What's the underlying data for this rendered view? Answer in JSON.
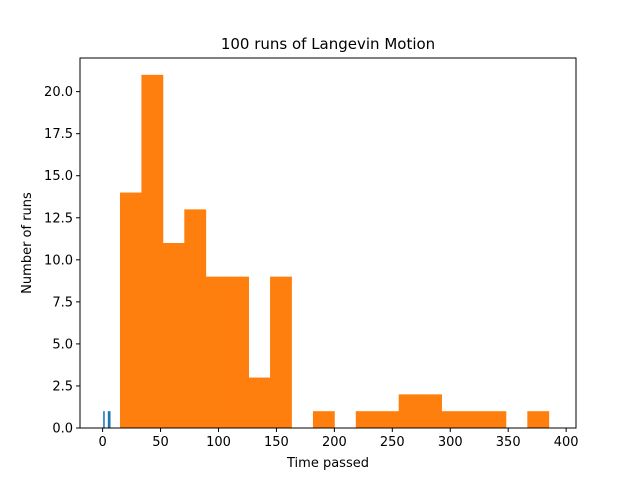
{
  "chart_data": {
    "type": "bar",
    "title": "100 runs of Langevin Motion",
    "xlabel": "Time passed",
    "ylabel": "Number of runs",
    "xlim": [
      -19.5,
      408.5
    ],
    "ylim": [
      0,
      22
    ],
    "xticks": [
      0,
      50,
      100,
      150,
      200,
      250,
      300,
      350,
      400
    ],
    "yticks": [
      0.0,
      2.5,
      5.0,
      7.5,
      10.0,
      12.5,
      15.0,
      17.5,
      20.0
    ],
    "xtick_labels": [
      "0",
      "50",
      "100",
      "150",
      "200",
      "250",
      "300",
      "350",
      "400"
    ],
    "ytick_labels": [
      "0.0",
      "2.5",
      "5.0",
      "7.5",
      "10.0",
      "12.5",
      "15.0",
      "17.5",
      "20.0"
    ],
    "grid": false,
    "legend": "none",
    "series": [
      {
        "color": "#1f77b4",
        "bars": [
          {
            "x0": 0.5,
            "x1": 1.5,
            "value": 1
          },
          {
            "x0": 4.5,
            "x1": 6.5,
            "value": 1
          }
        ]
      },
      {
        "color": "#ff7f0e",
        "bin_start": 15,
        "bin_width": 18.5,
        "values": [
          14,
          21,
          11,
          13,
          9,
          9,
          3,
          9,
          0,
          1,
          0,
          1,
          1,
          2,
          2,
          1,
          1,
          1,
          0,
          1
        ]
      }
    ]
  }
}
